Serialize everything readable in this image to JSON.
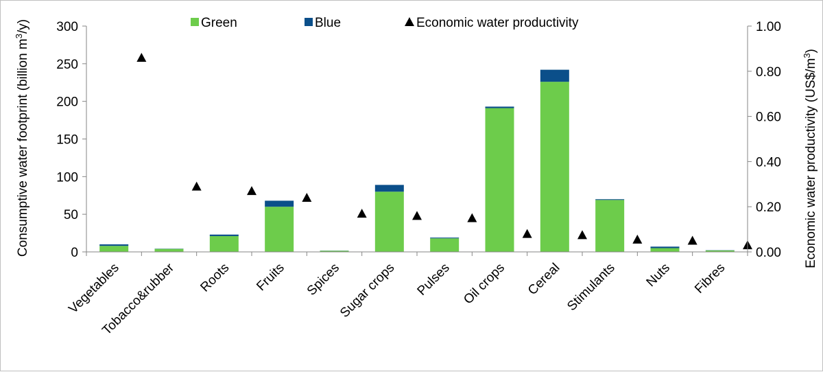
{
  "colors": {
    "green": "#6dcc4b",
    "blue": "#0b4f8a",
    "marker": "#000000",
    "axis": "#868686"
  },
  "chart_data": {
    "type": "bar",
    "stacked": true,
    "categories": [
      "Vegetables",
      "Tobacco&rubber",
      "Roots",
      "Fruits",
      "Spices",
      "Sugar crops",
      "Pulses",
      "Oil crops",
      "Cereal",
      "Stimulants",
      "Nuts",
      "Fibres"
    ],
    "series": [
      {
        "name": "Green",
        "axis": "left",
        "values": [
          8,
          4,
          21,
          60,
          1.5,
          80,
          18,
          191,
          226,
          69,
          5,
          2
        ]
      },
      {
        "name": "Blue",
        "axis": "left",
        "values": [
          2,
          0.3,
          2,
          8,
          0.2,
          9,
          1,
          2,
          16,
          1,
          2,
          0.3
        ]
      },
      {
        "name": "Economic water productivity",
        "axis": "right",
        "marker": "triangle",
        "values": [
          0.86,
          0.29,
          0.27,
          0.24,
          0.17,
          0.16,
          0.15,
          0.08,
          0.075,
          0.055,
          0.05,
          0.03
        ]
      }
    ],
    "ylabel_left_main": "Consumptive water footprint (billion m",
    "ylabel_left_sup": "3",
    "ylabel_left_end": "/y)",
    "ylabel_right_main": "Economic water productivity (US$/m",
    "ylabel_right_sup": "3",
    "ylabel_right_end": ")",
    "ylim_left": [
      0,
      300
    ],
    "ylim_right": [
      0,
      1.0
    ],
    "yticks_left": [
      "0",
      "50",
      "100",
      "150",
      "200",
      "250",
      "300"
    ],
    "yticks_right": [
      "0.00",
      "0.20",
      "0.40",
      "0.60",
      "0.80",
      "1.00"
    ],
    "legend": [
      "Green",
      "Blue",
      "Economic water productivity"
    ],
    "legend_position": "top",
    "grid": false
  }
}
